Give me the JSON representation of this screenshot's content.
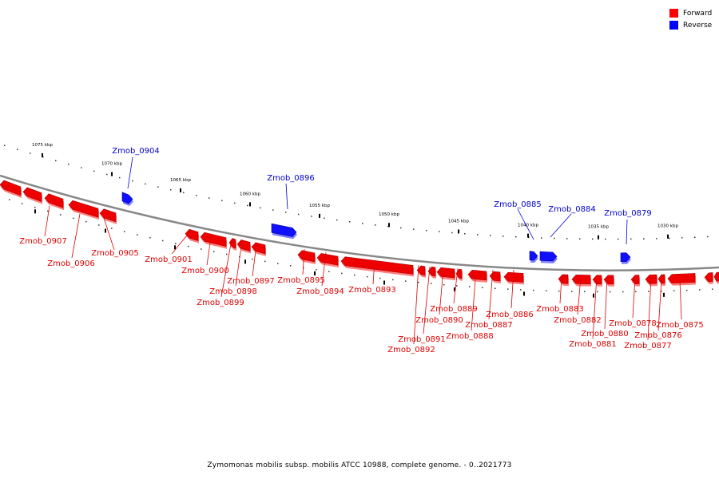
{
  "legend": {
    "forward_label": "Forward",
    "reverse_label": "Reverse",
    "forward_color": "#ff0000",
    "reverse_color": "#0000ff"
  },
  "footer": "Zymomonas mobilis subsp. mobilis ATCC 10988, complete genome. - 0..2021773",
  "ticks": [
    "1075 kbp",
    "1070 kbp",
    "1065 kbp",
    "1060 kbp",
    "1055 kbp",
    "1050 kbp",
    "1045 kbp",
    "1040 kbp",
    "1035 kbp",
    "1030 kbp"
  ],
  "genes": [
    {
      "name": "Zmob_0907",
      "strand": "forward"
    },
    {
      "name": "Zmob_0906",
      "strand": "forward"
    },
    {
      "name": "Zmob_0905",
      "strand": "forward"
    },
    {
      "name": "Zmob_0904",
      "strand": "reverse"
    },
    {
      "name": "Zmob_0901",
      "strand": "forward"
    },
    {
      "name": "Zmob_0900",
      "strand": "forward"
    },
    {
      "name": "Zmob_0899",
      "strand": "forward"
    },
    {
      "name": "Zmob_0898",
      "strand": "forward"
    },
    {
      "name": "Zmob_0897",
      "strand": "forward"
    },
    {
      "name": "Zmob_0896",
      "strand": "reverse"
    },
    {
      "name": "Zmob_0895",
      "strand": "forward"
    },
    {
      "name": "Zmob_0894",
      "strand": "forward"
    },
    {
      "name": "Zmob_0893",
      "strand": "forward"
    },
    {
      "name": "Zmob_0892",
      "strand": "forward"
    },
    {
      "name": "Zmob_0891",
      "strand": "forward"
    },
    {
      "name": "Zmob_0890",
      "strand": "forward"
    },
    {
      "name": "Zmob_0889",
      "strand": "forward"
    },
    {
      "name": "Zmob_0888",
      "strand": "forward"
    },
    {
      "name": "Zmob_0887",
      "strand": "forward"
    },
    {
      "name": "Zmob_0886",
      "strand": "forward"
    },
    {
      "name": "Zmob_0885",
      "strand": "reverse"
    },
    {
      "name": "Zmob_0884",
      "strand": "reverse"
    },
    {
      "name": "Zmob_0883",
      "strand": "forward"
    },
    {
      "name": "Zmob_0882",
      "strand": "forward"
    },
    {
      "name": "Zmob_0881",
      "strand": "forward"
    },
    {
      "name": "Zmob_0880",
      "strand": "forward"
    },
    {
      "name": "Zmob_0879",
      "strand": "reverse"
    },
    {
      "name": "Zmob_0878",
      "strand": "forward"
    },
    {
      "name": "Zmob_0877",
      "strand": "forward"
    },
    {
      "name": "Zmob_0876",
      "strand": "forward"
    },
    {
      "name": "Zmob_0875",
      "strand": "forward"
    }
  ]
}
